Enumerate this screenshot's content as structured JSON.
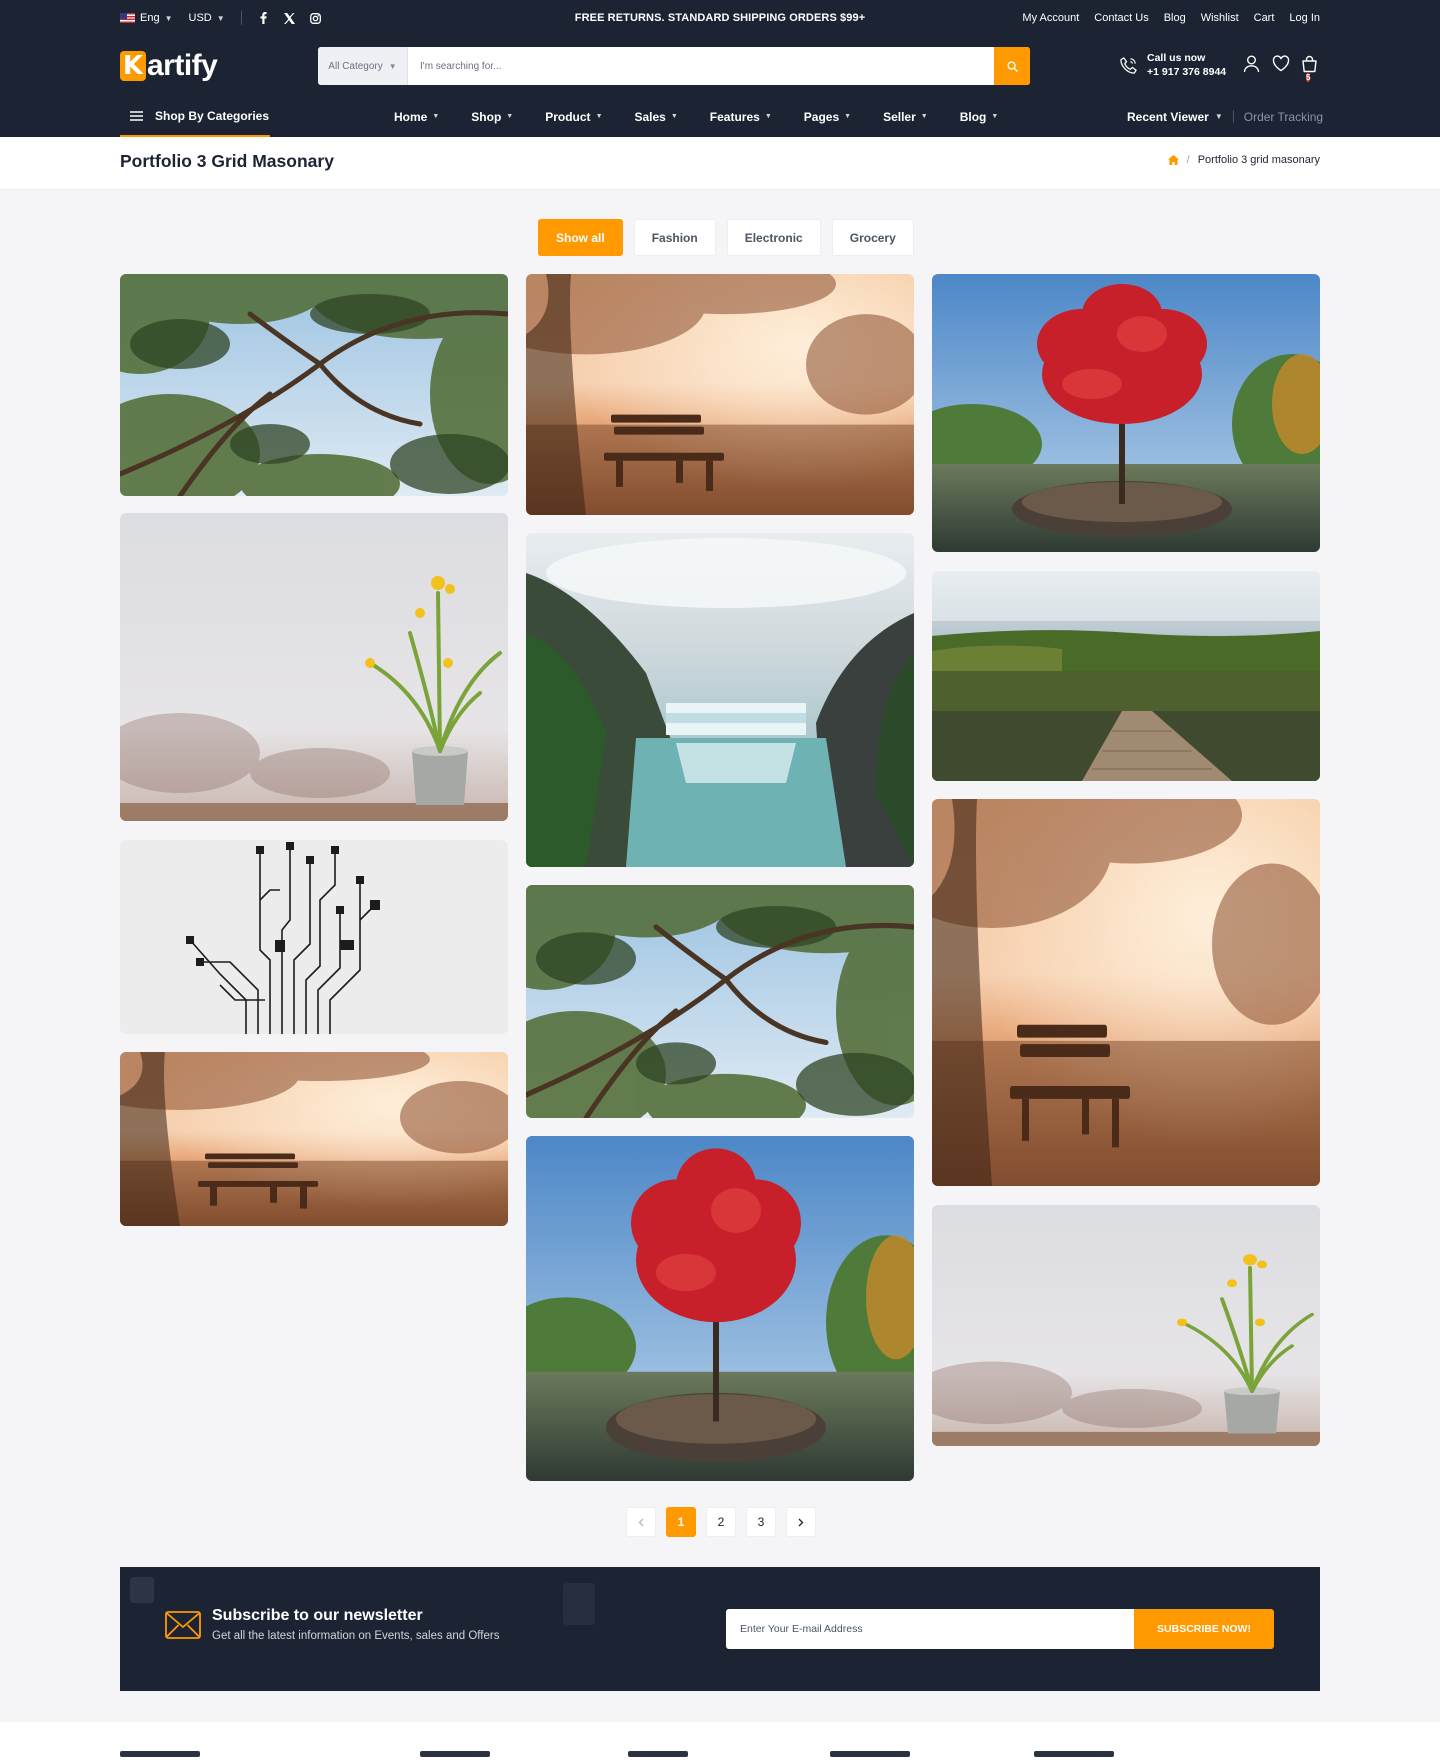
{
  "topbar": {
    "language": "Eng",
    "currency": "USD",
    "social": [
      "facebook-icon",
      "x-icon",
      "instagram-icon"
    ],
    "promo": "FREE RETURNS. STANDARD SHIPPING ORDERS $99+",
    "links": [
      "My Account",
      "Contact Us",
      "Blog",
      "Wishlist",
      "Cart",
      "Log In"
    ]
  },
  "header": {
    "logo_letter": "K",
    "logo_rest": "artify",
    "search": {
      "category": "All Category",
      "placeholder": "I'm searching for..."
    },
    "call_label": "Call us now",
    "call_number": "+1 917 376 8944",
    "cart_count": "5"
  },
  "nav": {
    "categories_label": "Shop By Categories",
    "items": [
      "Home",
      "Shop",
      "Product",
      "Sales",
      "Features",
      "Pages",
      "Seller",
      "Blog"
    ],
    "recent_viewer": "Recent Viewer",
    "order_tracking": "Order Tracking"
  },
  "page": {
    "title": "Portfolio 3 Grid Masonary",
    "breadcrumb_current": "Portfolio 3 grid masonary"
  },
  "filters": [
    "Show all",
    "Fashion",
    "Electronic",
    "Grocery"
  ],
  "gallery": {
    "columns": [
      [
        "tree-canopy-photo",
        "yellow-flower-pot-photo",
        "circuit-hand-illustration",
        "misty-bench-photo"
      ],
      [
        "misty-bench-photo",
        "waterfall-canyon-photo",
        "tree-canopy-photo",
        "red-maple-pond-photo"
      ],
      [
        "red-maple-pond-photo",
        "lake-dock-photo",
        "misty-bench-photo",
        "yellow-flower-pot-photo"
      ]
    ]
  },
  "pagination": {
    "pages": [
      "1",
      "2",
      "3"
    ],
    "current": "1"
  },
  "newsletter": {
    "title": "Subscribe to our newsletter",
    "subtitle": "Get all the latest information on Events, sales and Offers",
    "placeholder": "Enter Your E-mail Address",
    "button": "SUBSCRIBE NOW!"
  },
  "colors": {
    "accent": "#ff9900",
    "dark": "#1c2433",
    "background": "#f5f5f8"
  }
}
